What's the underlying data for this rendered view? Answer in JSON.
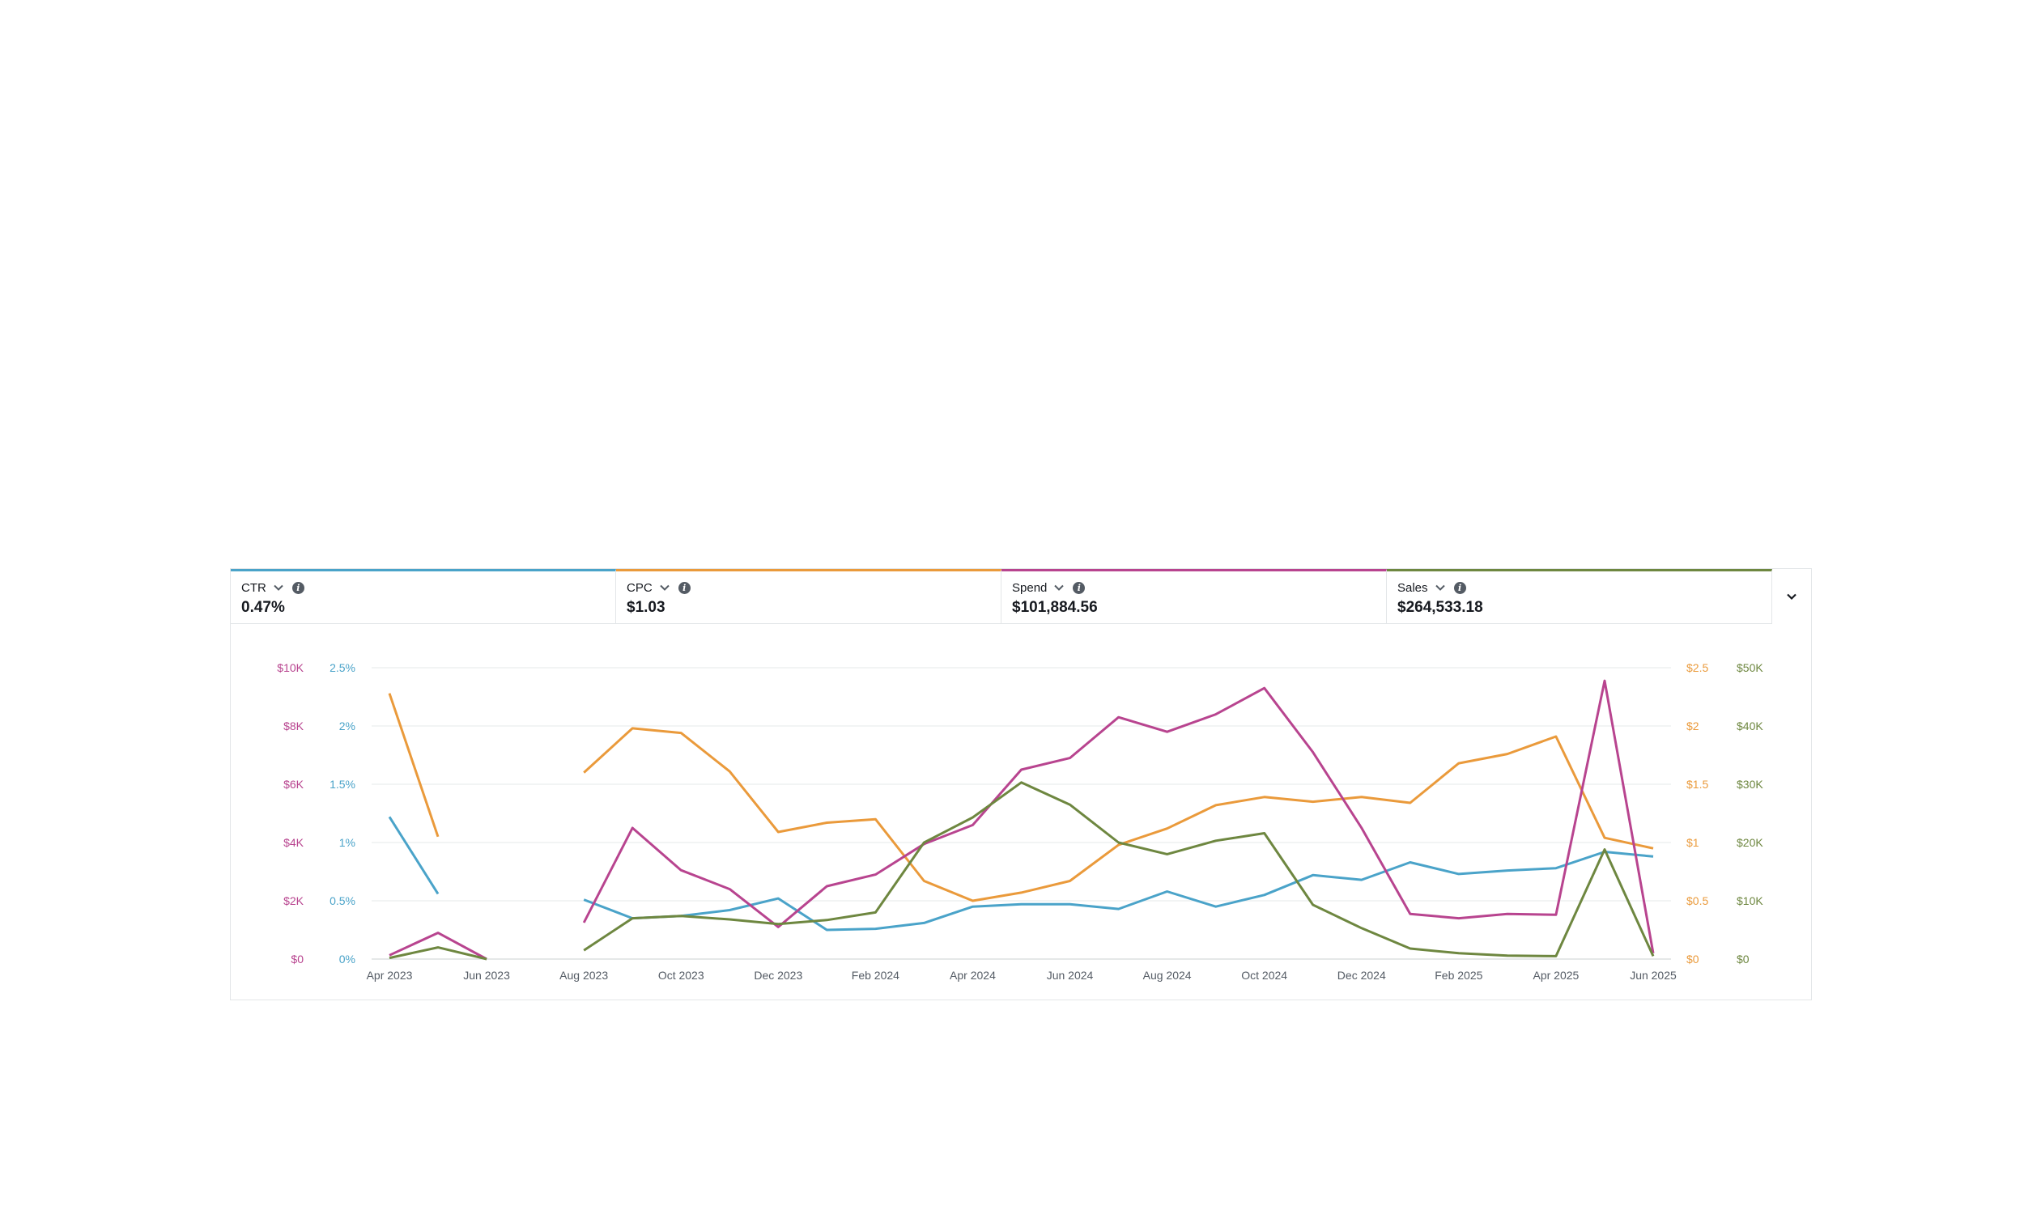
{
  "metrics": [
    {
      "name": "CTR",
      "value": "0.47%",
      "color": "#4aa3c9"
    },
    {
      "name": "CPC",
      "value": "$1.03",
      "color": "#ea9a3b"
    },
    {
      "name": "Spend",
      "value": "$101,884.56",
      "color": "#b8448f"
    },
    {
      "name": "Sales",
      "value": "$264,533.18",
      "color": "#6e8740"
    }
  ],
  "icons": {
    "metric_dropdown": "chevron-down-icon",
    "metric_info": "info-icon",
    "expand": "chevron-down-icon"
  },
  "chart_data": {
    "type": "line",
    "grid": "horizontal",
    "x": [
      "2023-04",
      "2023-05",
      "2023-06",
      "2023-07",
      "2023-08",
      "2023-09",
      "2023-10",
      "2023-11",
      "2023-12",
      "2024-01",
      "2024-02",
      "2024-03",
      "2024-04",
      "2024-05",
      "2024-06",
      "2024-07",
      "2024-08",
      "2024-09",
      "2024-10",
      "2024-11",
      "2024-12",
      "2025-01",
      "2025-02",
      "2025-03",
      "2025-04",
      "2025-05",
      "2025-06"
    ],
    "x_tick_labels": [
      "Apr 2023",
      "Jun 2023",
      "Aug 2023",
      "Oct 2023",
      "Dec 2023",
      "Feb 2024",
      "Apr 2024",
      "Jun 2024",
      "Aug 2024",
      "Oct 2024",
      "Dec 2024",
      "Feb 2025",
      "Apr 2025",
      "Jun 2025"
    ],
    "axes": {
      "spend": {
        "position": "left-outer",
        "ticks": [
          "$0",
          "$2K",
          "$4K",
          "$6K",
          "$8K",
          "$10K"
        ],
        "range": [
          0,
          10000
        ]
      },
      "ctr": {
        "position": "left-inner",
        "ticks": [
          "0%",
          "0.5%",
          "1%",
          "1.5%",
          "2%",
          "2.5%"
        ],
        "range": [
          0,
          2.5
        ]
      },
      "cpc": {
        "position": "right-inner",
        "ticks": [
          "$0",
          "$0.5",
          "$1",
          "$1.5",
          "$2",
          "$2.5"
        ],
        "range": [
          0,
          2.5
        ]
      },
      "sales": {
        "position": "right-outer",
        "ticks": [
          "$0",
          "$10K",
          "$20K",
          "$30K",
          "$40K",
          "$50K"
        ],
        "range": [
          0,
          50000
        ]
      }
    },
    "series": [
      {
        "name": "CTR",
        "axis": "ctr",
        "color": "#4aa3c9",
        "values": [
          1.22,
          0.56,
          null,
          null,
          0.51,
          0.35,
          0.37,
          0.42,
          0.52,
          0.25,
          0.26,
          0.31,
          0.45,
          0.47,
          0.47,
          0.43,
          0.58,
          0.45,
          0.55,
          0.72,
          0.68,
          0.83,
          0.73,
          0.76,
          0.78,
          0.92,
          0.88
        ]
      },
      {
        "name": "CPC",
        "axis": "cpc",
        "color": "#ea9a3b",
        "values": [
          2.28,
          1.05,
          null,
          null,
          1.6,
          1.98,
          1.94,
          1.61,
          1.09,
          1.17,
          1.2,
          0.67,
          0.5,
          0.57,
          0.67,
          0.98,
          1.12,
          1.32,
          1.39,
          1.35,
          1.39,
          1.34,
          1.68,
          1.76,
          1.91,
          1.04,
          0.95
        ]
      },
      {
        "name": "Spend",
        "axis": "spend",
        "color": "#b8448f",
        "values": [
          130,
          900,
          0,
          null,
          1250,
          4500,
          3050,
          2400,
          1100,
          2500,
          2900,
          3950,
          4600,
          6500,
          6900,
          8300,
          7800,
          8400,
          9300,
          7100,
          4500,
          1550,
          1400,
          1550,
          1520,
          9550,
          200
        ]
      },
      {
        "name": "Sales",
        "axis": "sales",
        "color": "#6e8740",
        "values": [
          200,
          2000,
          0,
          null,
          1500,
          7000,
          7400,
          6800,
          6000,
          6700,
          8000,
          20000,
          24300,
          30300,
          26500,
          20000,
          18000,
          20300,
          21600,
          9300,
          5300,
          1800,
          1000,
          600,
          500,
          18800,
          500
        ]
      }
    ]
  }
}
